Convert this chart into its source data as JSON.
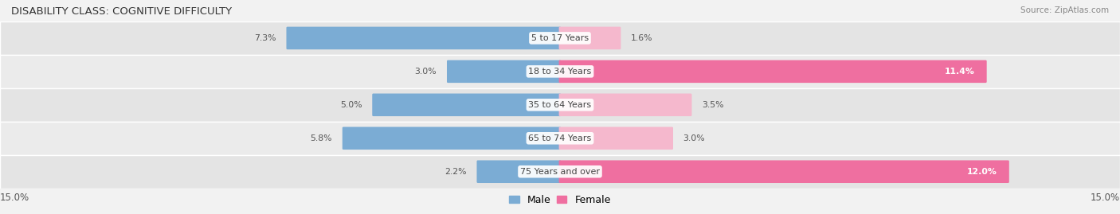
{
  "title": "DISABILITY CLASS: COGNITIVE DIFFICULTY",
  "source": "Source: ZipAtlas.com",
  "categories": [
    "5 to 17 Years",
    "18 to 34 Years",
    "35 to 64 Years",
    "65 to 74 Years",
    "75 Years and over"
  ],
  "male_values": [
    7.3,
    3.0,
    5.0,
    5.8,
    2.2
  ],
  "female_values": [
    1.6,
    11.4,
    3.5,
    3.0,
    12.0
  ],
  "male_bar_color": "#7bacd4",
  "female_bar_color": "#ef6fa0",
  "female_bar_color_light": "#f5b8cd",
  "max_val": 15.0,
  "bar_height": 0.62,
  "background_color": "#f2f2f2",
  "row_bg_even": "#e8e8e8",
  "row_bg_odd": "#f0f0f0",
  "title_fontsize": 9.5,
  "tick_fontsize": 8.5,
  "label_fontsize": 8,
  "legend_fontsize": 9,
  "value_fontsize": 7.8
}
